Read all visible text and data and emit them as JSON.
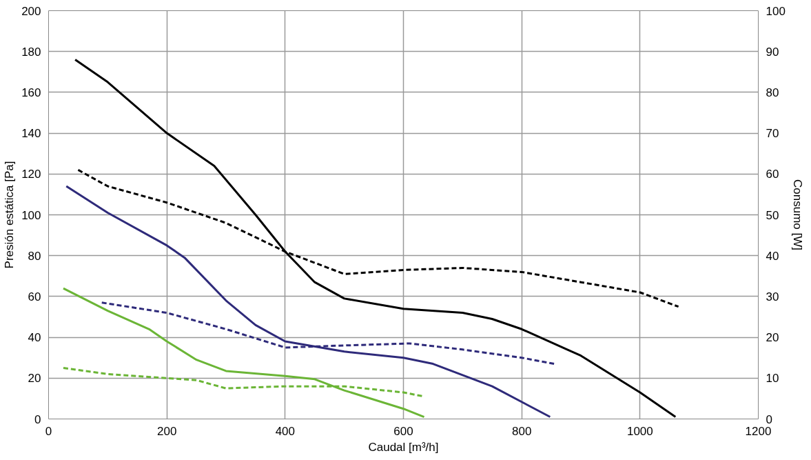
{
  "chart_data": {
    "type": "line",
    "xlabel": "Caudal [m³/h]",
    "ylabel": "Presión estática [Pa]",
    "y2label": "Consumo [W]",
    "xlim": [
      0,
      1200
    ],
    "xticks": [
      0,
      200,
      400,
      600,
      800,
      1000,
      1200
    ],
    "ylim": [
      0,
      200
    ],
    "yticks": [
      0,
      20,
      40,
      60,
      80,
      100,
      120,
      140,
      160,
      180,
      200
    ],
    "y2lim": [
      0,
      100
    ],
    "y2ticks": [
      0,
      10,
      20,
      30,
      40,
      50,
      60,
      70,
      80,
      90,
      100
    ],
    "grid": true,
    "marker": "none",
    "series": [
      {
        "color": "#000000",
        "line_style": "solid",
        "x": [
          45,
          100,
          200,
          280,
          350,
          400,
          450,
          500,
          600,
          700,
          750,
          800,
          900,
          1000,
          1060
        ],
        "values": [
          176,
          165,
          140,
          124,
          100,
          82,
          67,
          59,
          54,
          52,
          49,
          44,
          31,
          13,
          1
        ]
      },
      {
        "color": "#000000",
        "line_style": "dashed",
        "axis": "y2",
        "x": [
          50,
          100,
          200,
          300,
          400,
          500,
          600,
          700,
          800,
          900,
          1000,
          1065
        ],
        "values": [
          61,
          57,
          53,
          48,
          41,
          35.5,
          36.5,
          37,
          36,
          33.5,
          31,
          27.5
        ]
      },
      {
        "color": "#2e2a7a",
        "line_style": "solid",
        "x": [
          30,
          100,
          200,
          230,
          300,
          350,
          400,
          500,
          600,
          650,
          750,
          848
        ],
        "values": [
          114,
          101,
          85,
          79,
          58,
          46,
          38,
          33,
          30,
          27,
          16,
          1
        ]
      },
      {
        "color": "#2e2a7a",
        "line_style": "dashed",
        "axis": "y2",
        "x": [
          90,
          200,
          300,
          400,
          500,
          610,
          700,
          800,
          855
        ],
        "values": [
          28.5,
          26,
          22,
          17.5,
          18,
          18.5,
          17,
          15,
          13.5
        ]
      },
      {
        "color": "#6bb536",
        "line_style": "solid",
        "x": [
          25,
          100,
          170,
          200,
          250,
          300,
          400,
          450,
          500,
          600,
          635
        ],
        "values": [
          64,
          53,
          44,
          38,
          29,
          23.5,
          21,
          19.5,
          14,
          5,
          1
        ]
      },
      {
        "color": "#6bb536",
        "line_style": "dashed",
        "axis": "y2",
        "x": [
          25,
          100,
          200,
          250,
          300,
          400,
          500,
          600,
          635
        ],
        "values": [
          12.5,
          11,
          10,
          9.5,
          7.5,
          8,
          8,
          6.5,
          5.5
        ]
      }
    ]
  }
}
